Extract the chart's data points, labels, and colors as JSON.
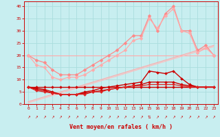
{
  "xlabel": "Vent moyen/en rafales ( km/h )",
  "xlim": [
    -0.5,
    23.5
  ],
  "ylim": [
    0,
    42
  ],
  "yticks": [
    0,
    5,
    10,
    15,
    20,
    25,
    30,
    35,
    40
  ],
  "xticks": [
    0,
    1,
    2,
    3,
    4,
    5,
    6,
    7,
    8,
    9,
    10,
    11,
    12,
    13,
    14,
    15,
    16,
    17,
    18,
    19,
    20,
    21,
    22,
    23
  ],
  "background_color": "#c8eef0",
  "grid_color": "#aadddd",
  "lines": [
    {
      "x": [
        0,
        1,
        2,
        3,
        4,
        5,
        6,
        7,
        8,
        9,
        10,
        11,
        12,
        13,
        14,
        15,
        16,
        17,
        18,
        19,
        20,
        21,
        22,
        23
      ],
      "y": [
        20,
        20,
        20,
        20,
        20,
        20,
        20,
        20,
        20,
        20,
        20,
        20,
        20,
        20,
        20,
        20,
        20,
        20,
        20,
        20,
        20,
        20,
        20,
        20
      ],
      "color": "#ffaaaa",
      "lw": 0.8,
      "marker": null
    },
    {
      "x": [
        0,
        1,
        2,
        3,
        4,
        5,
        6,
        7,
        8,
        9,
        10,
        11,
        12,
        13,
        14,
        15,
        16,
        17,
        18,
        19,
        20,
        21,
        22,
        23
      ],
      "y": [
        1,
        2,
        3,
        4,
        5,
        6,
        7,
        8,
        9,
        10,
        11,
        12,
        13,
        14,
        15,
        16,
        17,
        18,
        19,
        20,
        21,
        22,
        23,
        24
      ],
      "color": "#ffaaaa",
      "lw": 0.8,
      "marker": null
    },
    {
      "x": [
        0,
        1,
        2,
        3,
        4,
        5,
        6,
        7,
        8,
        9,
        10,
        11,
        12,
        13,
        14,
        15,
        16,
        17,
        18,
        19,
        20,
        21,
        22,
        23
      ],
      "y": [
        0.5,
        1.5,
        2.5,
        3.5,
        4.5,
        5.5,
        6.5,
        7.5,
        8.5,
        9.5,
        10.5,
        11.5,
        12.5,
        13.5,
        14.5,
        15.5,
        16.5,
        17.5,
        18.5,
        19.5,
        20.5,
        21.5,
        22.5,
        23.5
      ],
      "color": "#ffbbbb",
      "lw": 0.8,
      "marker": null
    },
    {
      "x": [
        0,
        1,
        2,
        3,
        4,
        5,
        6,
        7,
        8,
        9,
        10,
        11,
        12,
        13,
        14,
        15,
        16,
        17,
        18,
        19,
        20,
        21,
        22,
        23
      ],
      "y": [
        20,
        18,
        17,
        14,
        12,
        12,
        12,
        14,
        16,
        18,
        20,
        22,
        25,
        28,
        28,
        36,
        30,
        37,
        40,
        30,
        30,
        22,
        24,
        20
      ],
      "color": "#ff8888",
      "lw": 0.9,
      "marker": "D",
      "ms": 2.5
    },
    {
      "x": [
        0,
        1,
        2,
        3,
        4,
        5,
        6,
        7,
        8,
        9,
        10,
        11,
        12,
        13,
        14,
        15,
        16,
        17,
        18,
        19,
        20,
        21,
        22,
        23
      ],
      "y": [
        20,
        16,
        15,
        11,
        10,
        11,
        11,
        12,
        14,
        16,
        18,
        20,
        22,
        26,
        27,
        35,
        31,
        36,
        39,
        30,
        29,
        21,
        23,
        20
      ],
      "color": "#ffaaaa",
      "lw": 0.9,
      "marker": "D",
      "ms": 2.5
    },
    {
      "x": [
        0,
        1,
        2,
        3,
        4,
        5,
        6,
        7,
        8,
        9,
        10,
        11,
        12,
        13,
        14,
        15,
        16,
        17,
        18,
        19,
        20,
        21,
        22,
        23
      ],
      "y": [
        7,
        7,
        7,
        7,
        7,
        7,
        7,
        7,
        7,
        7,
        7,
        7,
        7,
        7,
        7,
        7,
        7,
        7,
        7,
        7,
        7,
        7,
        7,
        7
      ],
      "color": "#cc0000",
      "lw": 1.0,
      "marker": "D",
      "ms": 2.0
    },
    {
      "x": [
        0,
        1,
        2,
        3,
        4,
        5,
        6,
        7,
        8,
        9,
        10,
        11,
        12,
        13,
        14,
        15,
        16,
        17,
        18,
        19,
        20,
        21,
        22,
        23
      ],
      "y": [
        7,
        6.5,
        6,
        5,
        4,
        4,
        4,
        5,
        5.5,
        6.5,
        7,
        7.5,
        8,
        8.5,
        9,
        13.5,
        13,
        12.5,
        13.5,
        10.5,
        8,
        7,
        7,
        7
      ],
      "color": "#cc0000",
      "lw": 1.0,
      "marker": "D",
      "ms": 2.0
    },
    {
      "x": [
        0,
        1,
        2,
        3,
        4,
        5,
        6,
        7,
        8,
        9,
        10,
        11,
        12,
        13,
        14,
        15,
        16,
        17,
        18,
        19,
        20,
        21,
        22,
        23
      ],
      "y": [
        7,
        6,
        5.5,
        4.5,
        4,
        4,
        4,
        4.5,
        5,
        5.5,
        6,
        6.5,
        7,
        7.5,
        8,
        9,
        9,
        9,
        9,
        8,
        7.5,
        7,
        7,
        7
      ],
      "color": "#cc0000",
      "lw": 1.0,
      "marker": "D",
      "ms": 2.0
    },
    {
      "x": [
        0,
        1,
        2,
        3,
        4,
        5,
        6,
        7,
        8,
        9,
        10,
        11,
        12,
        13,
        14,
        15,
        16,
        17,
        18,
        19,
        20,
        21,
        22,
        23
      ],
      "y": [
        7,
        5.5,
        5,
        4.5,
        4,
        4,
        4,
        4,
        5,
        5,
        6,
        6.5,
        7,
        7.5,
        7.5,
        8,
        8,
        8,
        8,
        7.5,
        7,
        7,
        7,
        7
      ],
      "color": "#dd2222",
      "lw": 0.9,
      "marker": "D",
      "ms": 2.0
    }
  ],
  "arrows": [
    "↗",
    "↗",
    "↗",
    "↗",
    "↗",
    "↗",
    "↗",
    "↗",
    "↗",
    "↗",
    "↗",
    "↗",
    "↗",
    "↗",
    "↗",
    "⇅",
    "↗",
    "↗",
    "↗",
    "↗",
    "↗",
    "↗",
    "↗",
    "↗"
  ]
}
